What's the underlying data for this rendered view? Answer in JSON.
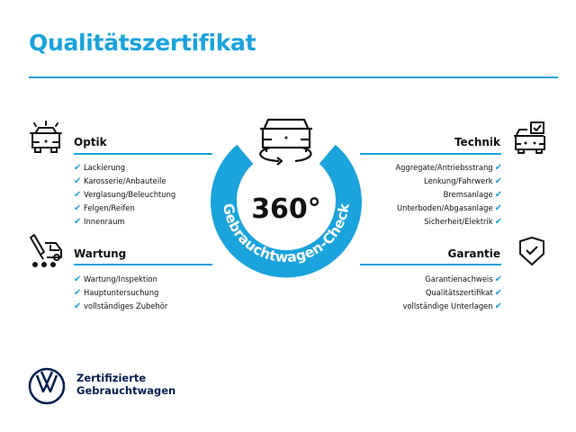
{
  "title": "Qualitätszertifikat",
  "accent_color": "#1aa3dc",
  "brand_color": "#001e50",
  "check_icon": "checkmark-icon",
  "sections": {
    "optik": {
      "heading": "Optik",
      "icon": "car-lights-icon",
      "items": [
        "Lackierung",
        "Karosserie/Anbauteile",
        "Verglasung/Beleuchtung",
        "Felgen/Reifen",
        "Innenraum"
      ]
    },
    "wartung": {
      "heading": "Wartung",
      "icon": "car-service-icon",
      "items": [
        "Wartung/Inspektion",
        "Hauptuntersuchung",
        "vollständiges Zubehör"
      ]
    },
    "technik": {
      "heading": "Technik",
      "icon": "car-checkbox-icon",
      "items": [
        "Aggregate/Antriebsstrang",
        "Lenkung/Fahrwerk",
        "Bremsanlage",
        "Unterboden/Abgasanlage",
        "Sicherheit/Elektrik"
      ]
    },
    "garantie": {
      "heading": "Garantie",
      "icon": "shield-check-icon",
      "items": [
        "Garantienachweis",
        "Qualitätszertifikat",
        "vollständige Unterlagen"
      ]
    }
  },
  "badge": {
    "value": "360°",
    "ring_text": "Gebrauchtwagen-Check"
  },
  "footer": {
    "line1": "Zertifizierte",
    "line2": "Gebrauchtwagen",
    "logo": "VW"
  }
}
